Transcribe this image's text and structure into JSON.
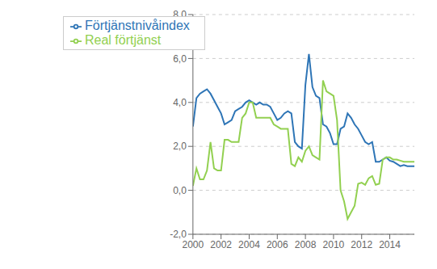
{
  "chart_data": {
    "type": "line",
    "x": [
      2000,
      2000.25,
      2000.5,
      2000.75,
      2001,
      2001.25,
      2001.5,
      2001.75,
      2002,
      2002.25,
      2002.5,
      2002.75,
      2003,
      2003.25,
      2003.5,
      2003.75,
      2004,
      2004.25,
      2004.5,
      2004.75,
      2005,
      2005.25,
      2005.5,
      2005.75,
      2006,
      2006.25,
      2006.5,
      2006.75,
      2007,
      2007.25,
      2007.5,
      2007.75,
      2008,
      2008.25,
      2008.5,
      2008.75,
      2009,
      2009.25,
      2009.5,
      2009.75,
      2010,
      2010.25,
      2010.5,
      2010.75,
      2011,
      2011.25,
      2011.5,
      2011.75,
      2012,
      2012.25,
      2012.5,
      2012.75,
      2013,
      2013.25,
      2013.5,
      2013.75,
      2014,
      2014.25,
      2014.5,
      2014.75,
      2015,
      2015.25,
      2015.5,
      2015.75
    ],
    "series": [
      {
        "name": "Förtjänstnivåindex",
        "color": "#2E75B6",
        "values": [
          2.9,
          4.2,
          4.4,
          4.5,
          4.6,
          4.4,
          4.1,
          3.8,
          3.5,
          3.0,
          3.1,
          3.2,
          3.6,
          3.7,
          3.8,
          4.0,
          4.1,
          4.0,
          3.9,
          4.0,
          3.9,
          3.9,
          3.8,
          3.5,
          3.2,
          3.3,
          3.5,
          3.6,
          3.5,
          2.2,
          2.0,
          1.9,
          4.8,
          6.2,
          4.7,
          4.3,
          4.2,
          3.0,
          2.9,
          2.6,
          2.1,
          2.1,
          2.8,
          2.9,
          3.5,
          3.3,
          3.0,
          2.8,
          2.5,
          2.2,
          2.1,
          2.2,
          1.3,
          1.3,
          1.4,
          1.5,
          1.35,
          1.3,
          1.2,
          1.1,
          1.15,
          1.1,
          1.1,
          1.1
        ]
      },
      {
        "name": "Real förtjänst",
        "color": "#92D050",
        "values": [
          0.2,
          1.0,
          0.5,
          0.5,
          0.9,
          2.2,
          1.0,
          0.9,
          0.9,
          2.3,
          2.3,
          2.2,
          2.2,
          2.2,
          3.3,
          3.5,
          4.0,
          4.0,
          3.3,
          3.3,
          3.3,
          3.3,
          3.3,
          3.0,
          2.9,
          2.8,
          2.8,
          2.8,
          1.2,
          1.1,
          1.5,
          1.3,
          1.8,
          2.0,
          1.6,
          1.5,
          1.4,
          5.0,
          4.5,
          4.4,
          4.3,
          3.2,
          0.0,
          -0.5,
          -1.3,
          -1.0,
          -0.7,
          0.3,
          0.35,
          0.25,
          0.55,
          0.65,
          0.25,
          0.3,
          1.4,
          1.5,
          1.5,
          1.4,
          1.4,
          1.35,
          1.3,
          1.3,
          1.3,
          1.3
        ]
      }
    ],
    "xlim": [
      2000,
      2015.75
    ],
    "xticks": [
      2000,
      2002,
      2004,
      2006,
      2008,
      2010,
      2012,
      2014
    ],
    "ylim": [
      -2.0,
      8.0
    ],
    "yticks": [
      {
        "value": -2.0,
        "label": "-2,0"
      },
      {
        "value": 0.0,
        "label": "0,0"
      },
      {
        "value": 2.0,
        "label": "2,0"
      },
      {
        "value": 4.0,
        "label": "4,0"
      },
      {
        "value": 6.0,
        "label": "6,0"
      },
      {
        "value": 8.0,
        "label": "8,0"
      }
    ],
    "grid": true,
    "legend": "upper left"
  }
}
